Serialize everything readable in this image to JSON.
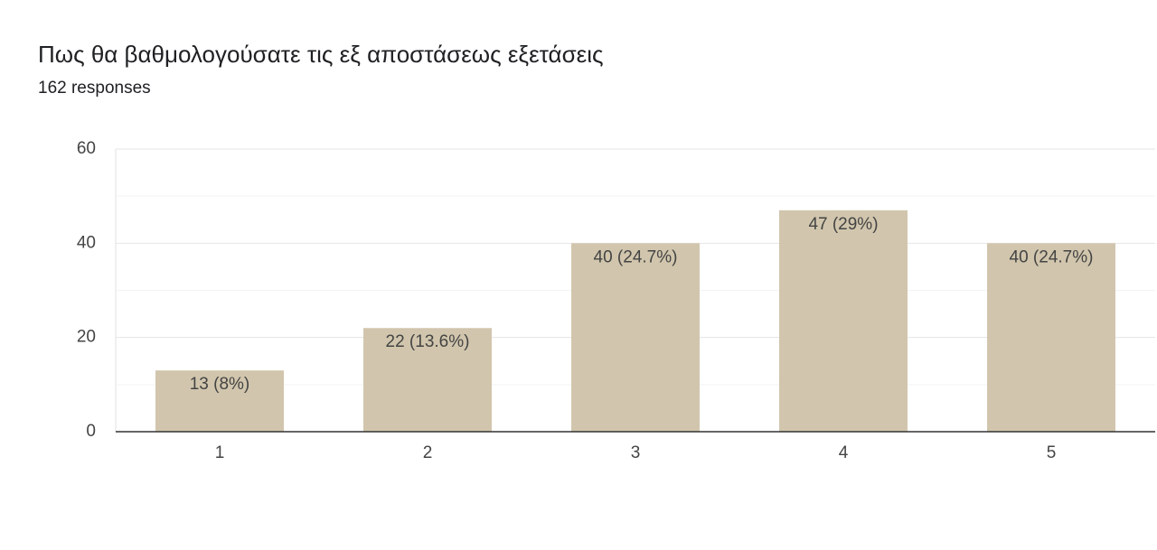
{
  "chart_data": {
    "type": "bar",
    "title": "Πως θα βαθμολογούσατε τις εξ αποστάσεως εξετάσεις",
    "subtitle": "162 responses",
    "categories": [
      "1",
      "2",
      "3",
      "4",
      "5"
    ],
    "values": [
      13,
      22,
      40,
      47,
      40
    ],
    "value_labels": [
      "13 (8%)",
      "22 (13.6%)",
      "40 (24.7%)",
      "47 (29%)",
      "40 (24.7%)"
    ],
    "color": "#d1c6ad",
    "ylim": [
      0,
      60
    ],
    "yticks": [
      0,
      20,
      40,
      60
    ],
    "minor_yticks": [
      10,
      30,
      50
    ],
    "grid": true
  }
}
